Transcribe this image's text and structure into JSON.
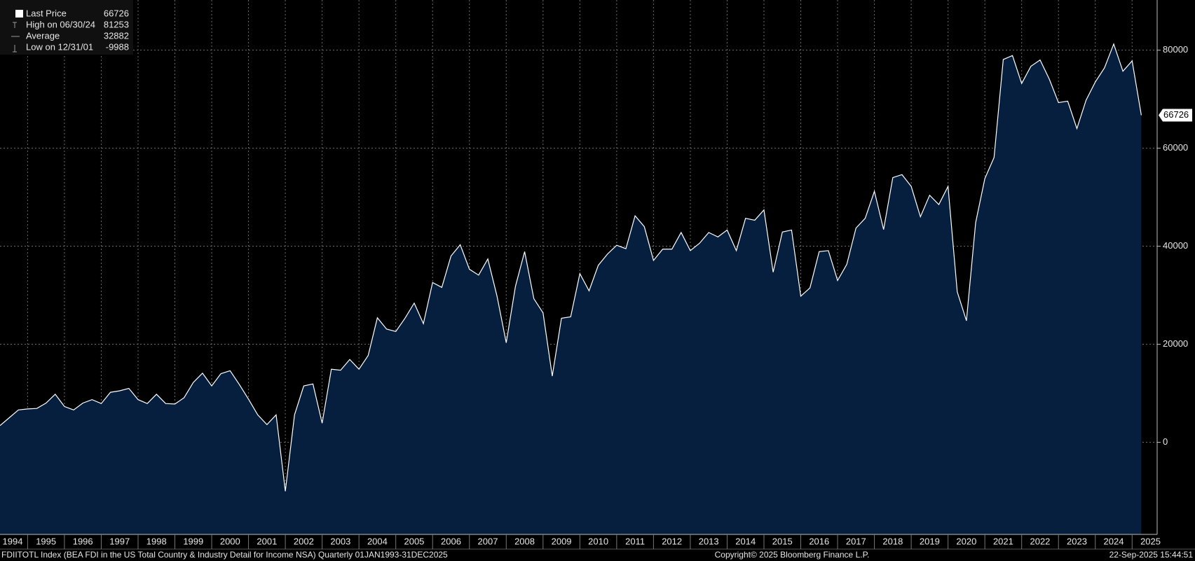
{
  "chart_data": {
    "type": "area",
    "legend_stats": [
      {
        "label": "Last Price",
        "value": 66726
      },
      {
        "label": "High on 06/30/24",
        "value": 81253
      },
      {
        "label": "Average",
        "value": 32882
      },
      {
        "label": "Low on 12/31/01",
        "value": -9988
      }
    ],
    "footer_left": "FDIITOTL Index (BEA FDI in the US Total Country & Industry Detail for Income NSA)  Quarterly 01JAN1993-31DEC2025",
    "footer_center": "Copyright© 2025 Bloomberg Finance L.P.",
    "footer_right": "22-Sep-2025 15:44:51",
    "line_color": "#ffffff",
    "fill_color": "#061f3e",
    "grid": true,
    "x": [
      1994.25,
      1994.5,
      1994.75,
      1995,
      1995.25,
      1995.5,
      1995.75,
      1996,
      1996.25,
      1996.5,
      1996.75,
      1997,
      1997.25,
      1997.5,
      1997.75,
      1998,
      1998.25,
      1998.5,
      1998.75,
      1999,
      1999.25,
      1999.5,
      1999.75,
      2000,
      2000.25,
      2000.5,
      2000.75,
      2001,
      2001.25,
      2001.5,
      2001.75,
      2002,
      2002.25,
      2002.5,
      2002.75,
      2003,
      2003.25,
      2003.5,
      2003.75,
      2004,
      2004.25,
      2004.5,
      2004.75,
      2005,
      2005.25,
      2005.5,
      2005.75,
      2006,
      2006.25,
      2006.5,
      2006.75,
      2007,
      2007.25,
      2007.5,
      2007.75,
      2008,
      2008.25,
      2008.5,
      2008.75,
      2009,
      2009.25,
      2009.5,
      2009.75,
      2010,
      2010.25,
      2010.5,
      2010.75,
      2011,
      2011.25,
      2011.5,
      2011.75,
      2012,
      2012.25,
      2012.5,
      2012.75,
      2013,
      2013.25,
      2013.5,
      2013.75,
      2014,
      2014.25,
      2014.5,
      2014.75,
      2015,
      2015.25,
      2015.5,
      2015.75,
      2016,
      2016.25,
      2016.5,
      2016.75,
      2017,
      2017.25,
      2017.5,
      2017.75,
      2018,
      2018.25,
      2018.5,
      2018.75,
      2019,
      2019.25,
      2019.5,
      2019.75,
      2020,
      2020.25,
      2020.5,
      2020.75,
      2021,
      2021.25,
      2021.5,
      2021.75,
      2022,
      2022.25,
      2022.5,
      2022.75,
      2023,
      2023.25,
      2023.5,
      2023.75,
      2024,
      2024.25,
      2024.5,
      2024.75,
      2025,
      2025.25
    ],
    "values": [
      3400,
      5000,
      6600,
      6800,
      6900,
      8000,
      9800,
      7300,
      6600,
      8000,
      8700,
      7900,
      10200,
      10500,
      11000,
      8700,
      7900,
      9800,
      7900,
      7800,
      9100,
      12200,
      14100,
      11500,
      14000,
      14600,
      11800,
      8800,
      5600,
      3600,
      5600,
      -9988,
      5600,
      11500,
      11900,
      3900,
      14900,
      14700,
      16900,
      14900,
      17700,
      25400,
      23100,
      22600,
      25300,
      28400,
      24200,
      32600,
      31600,
      38000,
      40300,
      35300,
      34100,
      37400,
      29800,
      20300,
      31800,
      38900,
      29300,
      26400,
      13500,
      25300,
      25600,
      34400,
      30900,
      36100,
      38400,
      40200,
      39500,
      46200,
      44000,
      37100,
      39400,
      39400,
      42800,
      39100,
      40600,
      42800,
      41900,
      43300,
      39100,
      45700,
      45300,
      47400,
      34700,
      42900,
      43300,
      29800,
      31500,
      38900,
      39100,
      33000,
      36300,
      43700,
      45700,
      51200,
      43400,
      54000,
      54600,
      52200,
      46000,
      50400,
      48500,
      52200,
      30700,
      24800,
      44800,
      53800,
      58100,
      78100,
      78900,
      73200,
      76700,
      78000,
      74100,
      69300,
      69600,
      64000,
      69800,
      73500,
      76400,
      81253,
      75700,
      77800,
      66726
    ],
    "xlim": [
      1994.25,
      2025.68
    ],
    "xticks": [
      {
        "value": 1994.5,
        "label": "1994"
      },
      {
        "value": 1995.5,
        "label": "1995"
      },
      {
        "value": 1996.5,
        "label": "1996"
      },
      {
        "value": 1997.5,
        "label": "1997"
      },
      {
        "value": 1998.5,
        "label": "1998"
      },
      {
        "value": 1999.5,
        "label": "1999"
      },
      {
        "value": 2000.5,
        "label": "2000"
      },
      {
        "value": 2001.5,
        "label": "2001"
      },
      {
        "value": 2002.5,
        "label": "2002"
      },
      {
        "value": 2003.5,
        "label": "2003"
      },
      {
        "value": 2004.5,
        "label": "2004"
      },
      {
        "value": 2005.5,
        "label": "2005"
      },
      {
        "value": 2006.5,
        "label": "2006"
      },
      {
        "value": 2007.5,
        "label": "2007"
      },
      {
        "value": 2008.5,
        "label": "2008"
      },
      {
        "value": 2009.5,
        "label": "2009"
      },
      {
        "value": 2010.5,
        "label": "2010"
      },
      {
        "value": 2011.5,
        "label": "2011"
      },
      {
        "value": 2012.5,
        "label": "2012"
      },
      {
        "value": 2013.5,
        "label": "2013"
      },
      {
        "value": 2014.5,
        "label": "2014"
      },
      {
        "value": 2015.5,
        "label": "2015"
      },
      {
        "value": 2016.5,
        "label": "2016"
      },
      {
        "value": 2017.5,
        "label": "2017"
      },
      {
        "value": 2018.5,
        "label": "2018"
      },
      {
        "value": 2019.5,
        "label": "2019"
      },
      {
        "value": 2020.5,
        "label": "2020"
      },
      {
        "value": 2021.5,
        "label": "2021"
      },
      {
        "value": 2022.5,
        "label": "2022"
      },
      {
        "value": 2023.5,
        "label": "2023"
      },
      {
        "value": 2024.5,
        "label": "2024"
      },
      {
        "value": 2025.5,
        "label": "2025"
      }
    ],
    "xgrid": [
      1995,
      1996,
      1997,
      1998,
      1999,
      2000,
      2001,
      2002,
      2003,
      2004,
      2005,
      2006,
      2007,
      2008,
      2009,
      2010,
      2011,
      2012,
      2013,
      2014,
      2015,
      2016,
      2017,
      2018,
      2019,
      2020,
      2021,
      2022,
      2023,
      2024,
      2025
    ],
    "ylim": [
      -18790,
      90230
    ],
    "yticks": [
      0,
      20000,
      40000,
      60000,
      80000
    ]
  }
}
